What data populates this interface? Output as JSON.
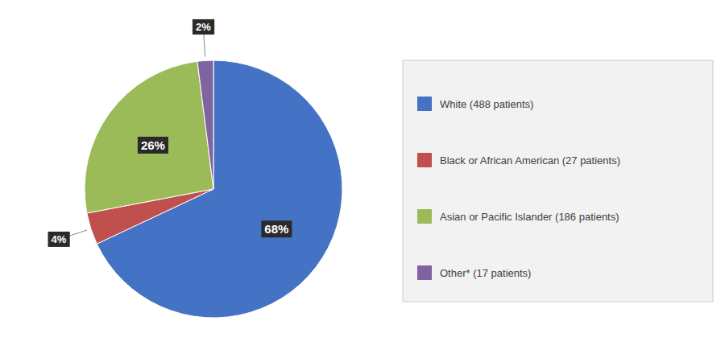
{
  "chart_data": {
    "type": "pie",
    "categories": [
      "White (488 patients)",
      "Black or African American (27 patients)",
      "Asian or Pacific Islander (186 patients)",
      "Other* (17 patients)"
    ],
    "values": [
      68,
      4,
      26,
      2
    ],
    "value_labels": [
      "68%",
      "4%",
      "26%",
      "2%"
    ],
    "colors": [
      "#4472C4",
      "#C0504D",
      "#9BBB59",
      "#8064A2"
    ],
    "data_labels": true,
    "legend": "right"
  }
}
